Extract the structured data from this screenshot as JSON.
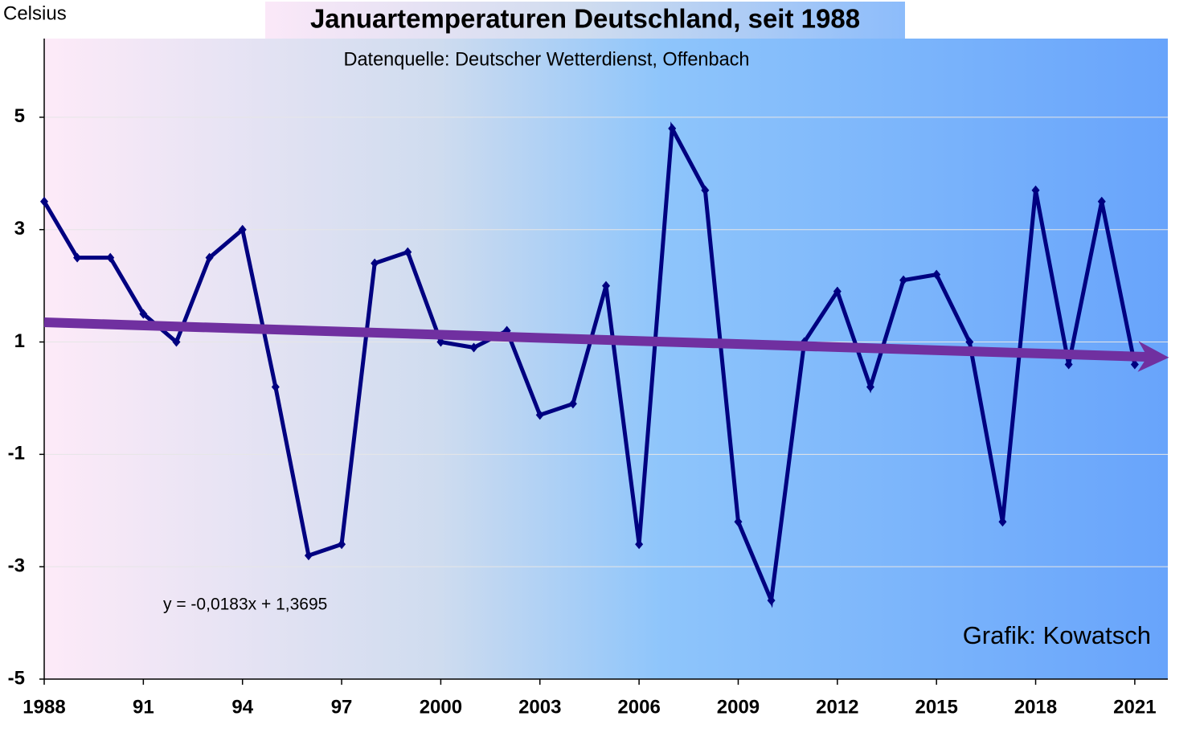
{
  "chart_data": {
    "type": "line",
    "title": "Januartemperaturen Deutschland, seit 1988",
    "subtitle": "Datenquelle: Deutscher Wetterdienst, Offenbach",
    "y_label": "Celsius",
    "equation": "y = -0,0183x + 1,3695",
    "credit": "Grafik: Kowatsch",
    "color": "#000080",
    "x": [
      1988,
      1989,
      1990,
      1991,
      1992,
      1993,
      1994,
      1995,
      1996,
      1997,
      1998,
      1999,
      2000,
      2001,
      2002,
      2003,
      2004,
      2005,
      2006,
      2007,
      2008,
      2009,
      2010,
      2011,
      2012,
      2013,
      2014,
      2015,
      2016,
      2017,
      2018,
      2019,
      2020,
      2021
    ],
    "values": [
      3.5,
      2.5,
      2.5,
      1.5,
      1.0,
      2.5,
      3.0,
      0.2,
      -2.8,
      -2.6,
      2.4,
      2.6,
      1.0,
      0.9,
      1.2,
      -0.3,
      -0.1,
      2.0,
      -2.6,
      4.8,
      3.7,
      -2.2,
      -3.6,
      1.0,
      1.9,
      0.2,
      2.1,
      2.2,
      1.0,
      -2.2,
      3.7,
      0.6,
      3.5,
      0.6
    ],
    "trendline": {
      "color": "#7030a0",
      "x": [
        1988,
        2022
      ],
      "values": [
        1.35,
        0.73
      ]
    },
    "xlim": [
      1988,
      2022
    ],
    "xticks": [
      1988,
      {
        "value": 1991,
        "label": "91"
      },
      {
        "value": 1994,
        "label": "94"
      },
      {
        "value": 1997,
        "label": "97"
      },
      2000,
      2003,
      2006,
      2009,
      2012,
      2015,
      2018,
      2021
    ],
    "ylim": [
      -5,
      6.4
    ],
    "yticks": [
      -5,
      -3,
      -1,
      1,
      3,
      5
    ],
    "grid": true
  }
}
